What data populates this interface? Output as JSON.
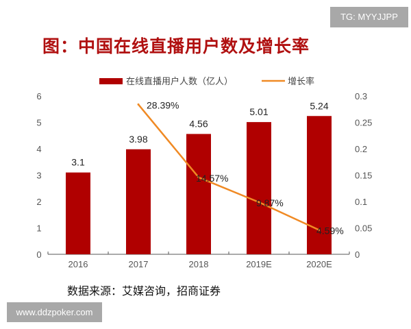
{
  "watermarks": {
    "top": "TG: MYYJJPP",
    "bottom": "www.ddzpoker.com"
  },
  "title": "图：中国在线直播用户数及增长率",
  "source": "数据来源：艾媒咨询，招商证券",
  "chart_data": {
    "type": "bar+line",
    "categories": [
      "2016",
      "2017",
      "2018",
      "2019E",
      "2020E"
    ],
    "series": [
      {
        "name": "在线直播用户人数（亿人）",
        "type": "bar",
        "axis": "left",
        "color": "#b00000",
        "values": [
          3.1,
          3.98,
          4.56,
          5.01,
          5.24
        ],
        "labels": [
          "3.1",
          "3.98",
          "4.56",
          "5.01",
          "5.24"
        ]
      },
      {
        "name": "增长率",
        "type": "line",
        "axis": "right",
        "color": "#f08a24",
        "values": [
          null,
          0.2839,
          0.1457,
          0.0987,
          0.0459
        ],
        "labels": [
          "",
          "28.39%",
          "14.57%",
          "9.87%",
          "4.59%"
        ]
      }
    ],
    "y_left": {
      "range": [
        0,
        6
      ],
      "ticks": [
        "0",
        "1",
        "2",
        "3",
        "4",
        "5",
        "6"
      ]
    },
    "y_right": {
      "range": [
        0,
        0.3
      ],
      "ticks": [
        "0",
        "0.05",
        "0.1",
        "0.15",
        "0.2",
        "0.25",
        "0.3"
      ]
    },
    "legend": "top",
    "grid": false
  }
}
